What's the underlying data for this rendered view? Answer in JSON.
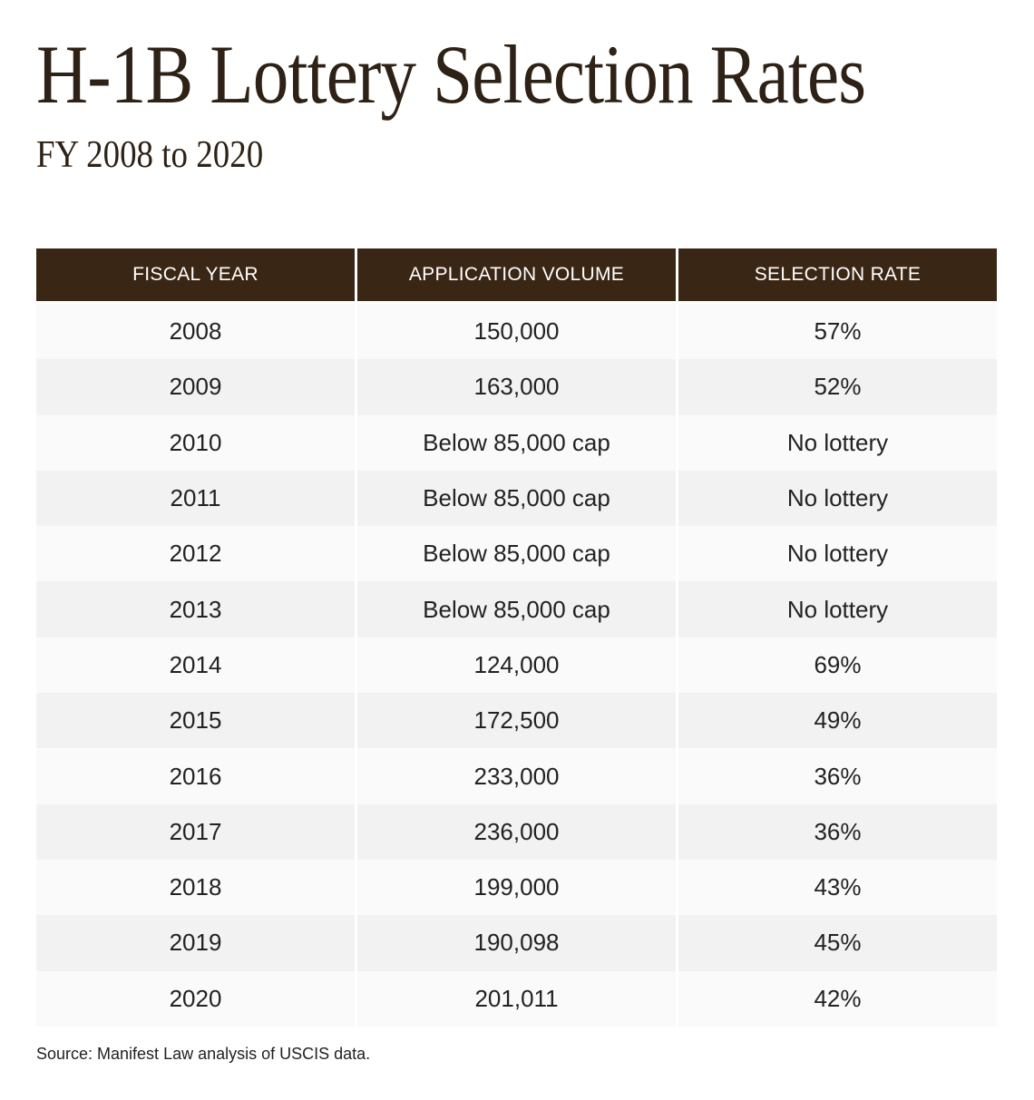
{
  "title": "H-1B Lottery Selection Rates",
  "subtitle": "FY 2008 to 2020",
  "colors": {
    "header_bg": "#3a2614",
    "title": "#2e2116",
    "row_light": "#fafafa",
    "row_dark": "#f2f2f2"
  },
  "chart_data": {
    "type": "table",
    "columns": [
      "FISCAL YEAR",
      "APPLICATION VOLUME",
      "SELECTION RATE"
    ],
    "rows": [
      [
        "2008",
        "150,000",
        "57%"
      ],
      [
        "2009",
        "163,000",
        "52%"
      ],
      [
        "2010",
        "Below 85,000 cap",
        "No lottery"
      ],
      [
        "2011",
        "Below 85,000 cap",
        "No lottery"
      ],
      [
        "2012",
        "Below 85,000 cap",
        "No lottery"
      ],
      [
        "2013",
        "Below 85,000 cap",
        "No lottery"
      ],
      [
        "2014",
        "124,000",
        "69%"
      ],
      [
        "2015",
        "172,500",
        "49%"
      ],
      [
        "2016",
        "233,000",
        "36%"
      ],
      [
        "2017",
        "236,000",
        "36%"
      ],
      [
        "2018",
        "199,000",
        "43%"
      ],
      [
        "2019",
        "190,098",
        "45%"
      ],
      [
        "2020",
        "201,011",
        "42%"
      ]
    ]
  },
  "source": "Source: Manifest Law analysis of USCIS data."
}
